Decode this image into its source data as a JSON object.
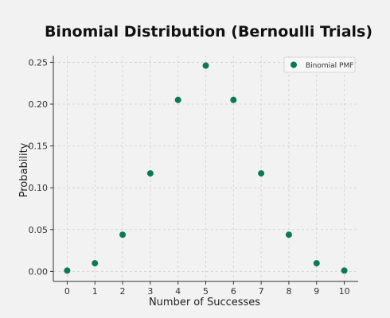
{
  "chart_data": {
    "type": "scatter",
    "title": "Binomial Distribution (Bernoulli Trials)",
    "xlabel": "Number of Successes",
    "ylabel": "Probability",
    "x": [
      0,
      1,
      2,
      3,
      4,
      5,
      6,
      7,
      8,
      9,
      10
    ],
    "series": [
      {
        "name": "Binomial PMF",
        "color": "#0a7a55",
        "values": [
          0.001,
          0.0098,
          0.0439,
          0.1172,
          0.2051,
          0.2461,
          0.2051,
          0.1172,
          0.0439,
          0.0098,
          0.001
        ]
      }
    ],
    "xticks": [
      "0",
      "1",
      "2",
      "3",
      "4",
      "5",
      "6",
      "7",
      "8",
      "9",
      "10"
    ],
    "yticks": [
      "0.00",
      "0.05",
      "0.10",
      "0.15",
      "0.20",
      "0.25"
    ],
    "xlim": [
      -0.5,
      10.5
    ],
    "ylim": [
      -0.012,
      0.258
    ],
    "grid": true,
    "legend_position": "top-right"
  }
}
